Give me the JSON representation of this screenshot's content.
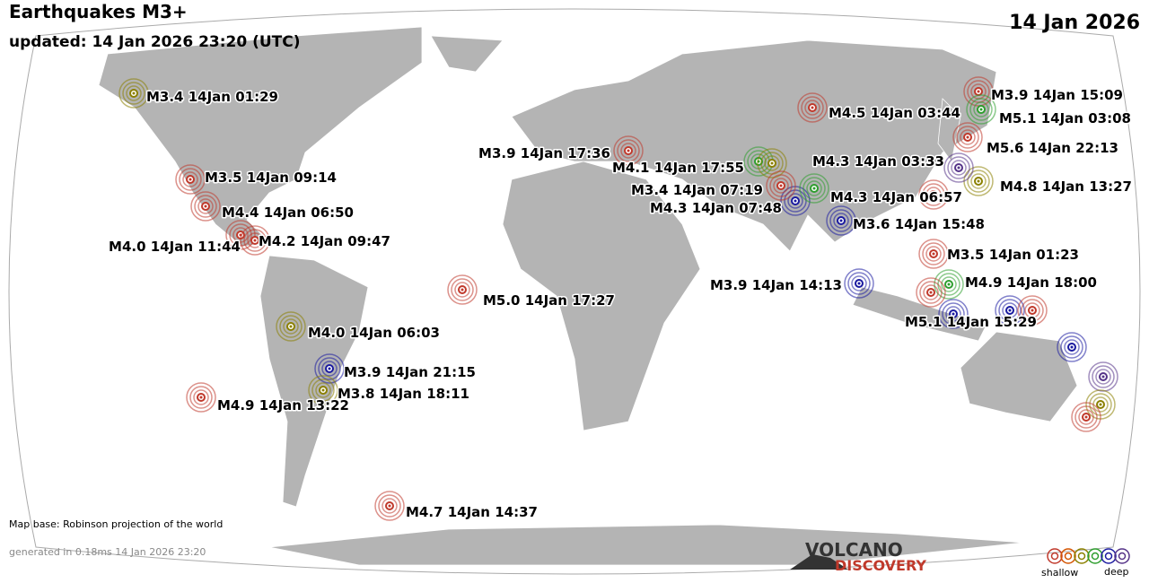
{
  "header": {
    "title": "Earthquakes M3+",
    "updated": "updated: 14 Jan 2026 23:20 (UTC)",
    "date": "14 Jan 2026"
  },
  "quakes": [
    {
      "label": "M3.4 14Jan 01:29",
      "color": "#8b8000"
    },
    {
      "label": "M3.5 14Jan 09:14",
      "color": "#c0392b"
    },
    {
      "label": "M4.4 14Jan 06:50",
      "color": "#c0392b"
    },
    {
      "label": "M4.0 14Jan 11:44",
      "color": "#c0392b"
    },
    {
      "label": "M4.2 14Jan 09:47",
      "color": "#c0392b"
    },
    {
      "label": "M5.0 14Jan 17:27",
      "color": "#c0392b"
    },
    {
      "label": "M4.0 14Jan 06:03",
      "color": "#8b8000"
    },
    {
      "label": "M3.9 14Jan 21:15",
      "color": "#1a1aa0"
    },
    {
      "label": "M3.8 14Jan 18:11",
      "color": "#8b8000"
    },
    {
      "label": "M4.9 14Jan 13:22",
      "color": "#c0392b"
    },
    {
      "label": "M4.7 14Jan 14:37",
      "color": "#c0392b"
    },
    {
      "label": "M3.9 14Jan 17:36",
      "color": "#c0392b"
    },
    {
      "label": "M4.1 14Jan 17:55",
      "color": "#2e9e2e"
    },
    {
      "label": "M3.4 14Jan 07:19",
      "color": "#8b8000"
    },
    {
      "label": "M4.3 14Jan 07:48",
      "color": "#1a1aa0"
    },
    {
      "label": "M4.3 14Jan 03:33",
      "color": "#2e9e2e"
    },
    {
      "label": "M4.3 14Jan 06:57",
      "color": "#c0392b"
    },
    {
      "label": "M4.5 14Jan 03:44",
      "color": "#c0392b"
    },
    {
      "label": "M3.9 14Jan 15:09",
      "color": "#c0392b"
    },
    {
      "label": "M5.1 14Jan 03:08",
      "color": "#2e9e2e"
    },
    {
      "label": "M5.6 14Jan 22:13",
      "color": "#c0392b"
    },
    {
      "label": "M4.8 14Jan 13:27",
      "color": "#8b8000"
    },
    {
      "label": "M3.6 14Jan 15:48",
      "color": "#1a1aa0"
    },
    {
      "label": "M3.5 14Jan 01:23",
      "color": "#c0392b"
    },
    {
      "label": "M3.9 14Jan 14:13",
      "color": "#1a1aa0"
    },
    {
      "label": "M4.9 14Jan 18:00",
      "color": "#2e9e2e"
    },
    {
      "label": "M5.1 14Jan 15:29",
      "color": "#1a1aa0"
    },
    {
      "color": "#553388"
    },
    {
      "color": "#c0392b"
    },
    {
      "color": "#1a1aa0"
    },
    {
      "color": "#c0392b"
    },
    {
      "color": "#c0392b"
    },
    {
      "color": "#1a1aa0"
    },
    {
      "color": "#553388"
    },
    {
      "color": "#8b8000"
    },
    {
      "color": "#c0392b"
    }
  ],
  "footer": {
    "map_base": "Map base: Robinson projection of the world",
    "generated": "generated in 0.18ms 14 Jan 2026 23:20"
  },
  "logo": {
    "line1": "VOLCANO",
    "line2": "DISCOVERY"
  },
  "legend": {
    "shallow": "shallow",
    "deep": "deep",
    "colors": [
      "#c0392b",
      "#d35400",
      "#8b8000",
      "#2e9e2e",
      "#1a1aa0",
      "#553388"
    ]
  }
}
